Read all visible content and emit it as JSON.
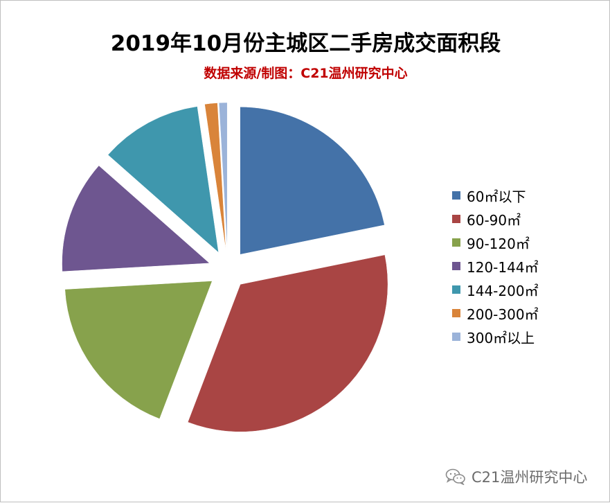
{
  "title": "2019年10月份主城区二手房成交面积段",
  "subtitle": "数据来源/制图：C21温州研究中心",
  "watermark": {
    "text": "C21温州研究中心",
    "icon": "wechat-icon"
  },
  "colors": {
    "subtitle": "#c00000"
  },
  "chart_data": {
    "type": "pie",
    "title": "2019年10月份主城区二手房成交面积段",
    "legend_position": "right",
    "exploded": true,
    "start": "12 o'clock, clockwise",
    "categories": [
      "60㎡以下",
      "60-90㎡",
      "90-120㎡",
      "120-144㎡",
      "144-200㎡",
      "200-300㎡",
      "300㎡以上"
    ],
    "values": [
      21.8,
      34.0,
      18.3,
      12.4,
      11.2,
      1.4,
      0.9
    ],
    "unit": "%",
    "colors": [
      "#4472a8",
      "#a94544",
      "#87a24c",
      "#6e5690",
      "#3f97ad",
      "#d9843a",
      "#9bb3d9"
    ]
  }
}
